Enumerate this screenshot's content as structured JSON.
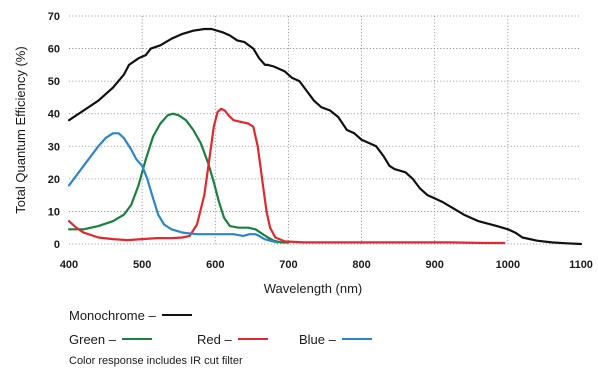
{
  "chart_data": {
    "type": "line",
    "xlabel": "Wavelength (nm)",
    "ylabel": "Total Quantum Efficiency (%)",
    "xlim": [
      400,
      1100
    ],
    "ylim": [
      0,
      70
    ],
    "xticks": [
      400,
      500,
      600,
      700,
      800,
      900,
      1000,
      1100
    ],
    "yticks": [
      0,
      10,
      20,
      30,
      40,
      50,
      60,
      70
    ],
    "grid": "dotted-vertical-and-horizontal",
    "legend_placement": "bottom-left",
    "series": [
      {
        "name": "Monochrome",
        "color": "#111111",
        "points": [
          [
            400,
            38
          ],
          [
            420,
            41
          ],
          [
            440,
            44
          ],
          [
            460,
            48
          ],
          [
            475,
            52
          ],
          [
            482,
            55
          ],
          [
            495,
            57
          ],
          [
            505,
            58
          ],
          [
            512,
            60
          ],
          [
            525,
            61
          ],
          [
            540,
            63
          ],
          [
            555,
            64.5
          ],
          [
            570,
            65.5
          ],
          [
            585,
            66
          ],
          [
            595,
            66
          ],
          [
            610,
            65
          ],
          [
            620,
            64
          ],
          [
            630,
            62.5
          ],
          [
            640,
            62
          ],
          [
            652,
            60
          ],
          [
            660,
            57
          ],
          [
            668,
            55
          ],
          [
            672,
            55
          ],
          [
            680,
            54.5
          ],
          [
            695,
            53
          ],
          [
            705,
            51
          ],
          [
            715,
            50
          ],
          [
            725,
            47
          ],
          [
            735,
            44
          ],
          [
            745,
            42
          ],
          [
            757,
            41
          ],
          [
            768,
            39
          ],
          [
            780,
            35
          ],
          [
            790,
            34
          ],
          [
            800,
            32
          ],
          [
            810,
            31
          ],
          [
            820,
            30
          ],
          [
            830,
            27
          ],
          [
            838,
            24
          ],
          [
            845,
            23
          ],
          [
            860,
            22
          ],
          [
            870,
            20
          ],
          [
            880,
            17
          ],
          [
            890,
            15
          ],
          [
            900,
            14
          ],
          [
            910,
            13
          ],
          [
            925,
            11
          ],
          [
            940,
            9
          ],
          [
            960,
            7
          ],
          [
            985,
            5.5
          ],
          [
            1000,
            4.5
          ],
          [
            1010,
            3.5
          ],
          [
            1020,
            2
          ],
          [
            1040,
            1
          ],
          [
            1060,
            0.5
          ],
          [
            1080,
            0.2
          ],
          [
            1100,
            0
          ]
        ]
      },
      {
        "name": "Green",
        "color": "#1a8040",
        "points": [
          [
            400,
            4.5
          ],
          [
            420,
            4.5
          ],
          [
            440,
            5.5
          ],
          [
            460,
            7
          ],
          [
            475,
            9
          ],
          [
            485,
            12
          ],
          [
            495,
            18
          ],
          [
            505,
            26
          ],
          [
            515,
            33
          ],
          [
            525,
            37
          ],
          [
            535,
            39.5
          ],
          [
            542,
            40
          ],
          [
            550,
            39.5
          ],
          [
            560,
            38
          ],
          [
            570,
            35
          ],
          [
            580,
            31
          ],
          [
            590,
            25
          ],
          [
            598,
            19
          ],
          [
            605,
            13
          ],
          [
            612,
            8
          ],
          [
            620,
            5.5
          ],
          [
            632,
            5
          ],
          [
            645,
            5
          ],
          [
            655,
            4.5
          ],
          [
            665,
            3
          ],
          [
            672,
            2
          ],
          [
            680,
            1
          ],
          [
            690,
            0.5
          ],
          [
            700,
            0.5
          ]
        ]
      },
      {
        "name": "Red",
        "color": "#e0282e",
        "points": [
          [
            400,
            7
          ],
          [
            410,
            5
          ],
          [
            420,
            3.5
          ],
          [
            440,
            2
          ],
          [
            460,
            1.5
          ],
          [
            480,
            1.2
          ],
          [
            500,
            1.5
          ],
          [
            520,
            1.8
          ],
          [
            540,
            1.8
          ],
          [
            555,
            2
          ],
          [
            565,
            2.5
          ],
          [
            575,
            6
          ],
          [
            585,
            15
          ],
          [
            593,
            28
          ],
          [
            598,
            36
          ],
          [
            603,
            40.5
          ],
          [
            608,
            41.5
          ],
          [
            613,
            41
          ],
          [
            618,
            39.5
          ],
          [
            625,
            38
          ],
          [
            635,
            37.5
          ],
          [
            645,
            37
          ],
          [
            652,
            36
          ],
          [
            658,
            30
          ],
          [
            664,
            20
          ],
          [
            670,
            10
          ],
          [
            675,
            5
          ],
          [
            682,
            2
          ],
          [
            695,
            0.8
          ],
          [
            720,
            0.5
          ],
          [
            760,
            0.5
          ],
          [
            800,
            0.5
          ],
          [
            860,
            0.5
          ],
          [
            920,
            0.5
          ],
          [
            970,
            0.3
          ],
          [
            995,
            0.3
          ]
        ]
      },
      {
        "name": "Blue",
        "color": "#2b85c9",
        "points": [
          [
            400,
            18
          ],
          [
            410,
            21
          ],
          [
            420,
            24
          ],
          [
            430,
            27
          ],
          [
            440,
            30
          ],
          [
            450,
            32.5
          ],
          [
            460,
            34
          ],
          [
            468,
            34
          ],
          [
            475,
            32.5
          ],
          [
            485,
            29
          ],
          [
            492,
            26
          ],
          [
            500,
            24
          ],
          [
            507,
            20
          ],
          [
            515,
            14
          ],
          [
            522,
            9
          ],
          [
            530,
            6
          ],
          [
            540,
            4.5
          ],
          [
            555,
            3.5
          ],
          [
            575,
            3
          ],
          [
            600,
            3
          ],
          [
            625,
            3
          ],
          [
            638,
            2.5
          ],
          [
            647,
            3
          ],
          [
            655,
            3
          ],
          [
            660,
            2.5
          ],
          [
            667,
            1.5
          ],
          [
            675,
            1
          ],
          [
            685,
            0.5
          ]
        ]
      }
    ]
  },
  "legend": {
    "monochrome_label": "Monochrome –",
    "green_label": "Green –",
    "red_label": "Red –",
    "blue_label": "Blue –"
  },
  "note": "Color response includes IR cut filter"
}
